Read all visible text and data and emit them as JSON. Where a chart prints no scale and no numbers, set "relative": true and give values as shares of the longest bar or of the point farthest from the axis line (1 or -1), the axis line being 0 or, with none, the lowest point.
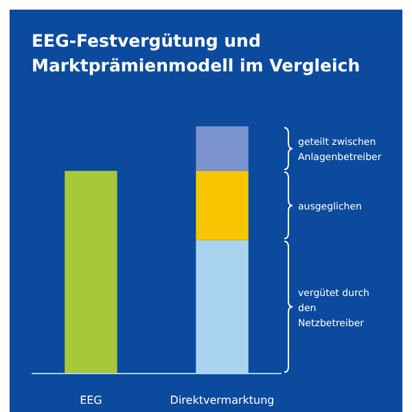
{
  "chart_data": {
    "type": "bar",
    "stacked": true,
    "relative": true,
    "title": "EEG-Festvergütung und Marktprämienmodell im Vergleich",
    "categories": [
      "EEG",
      "Direktvermarktung"
    ],
    "series": [
      {
        "values": [
          0.82,
          0.54
        ],
        "colors": [
          "#a6c83a",
          "#a9d3f0"
        ]
      },
      {
        "values": [
          null,
          0.28
        ],
        "color": "#f7c600"
      },
      {
        "values": [
          null,
          0.18
        ],
        "color": "#7b93cc"
      }
    ],
    "annotations": [
      "vergütet durch den Netzbetreiber",
      "ausgeglichen",
      "geteilt zwischen Anlagenbetreiber"
    ]
  }
}
